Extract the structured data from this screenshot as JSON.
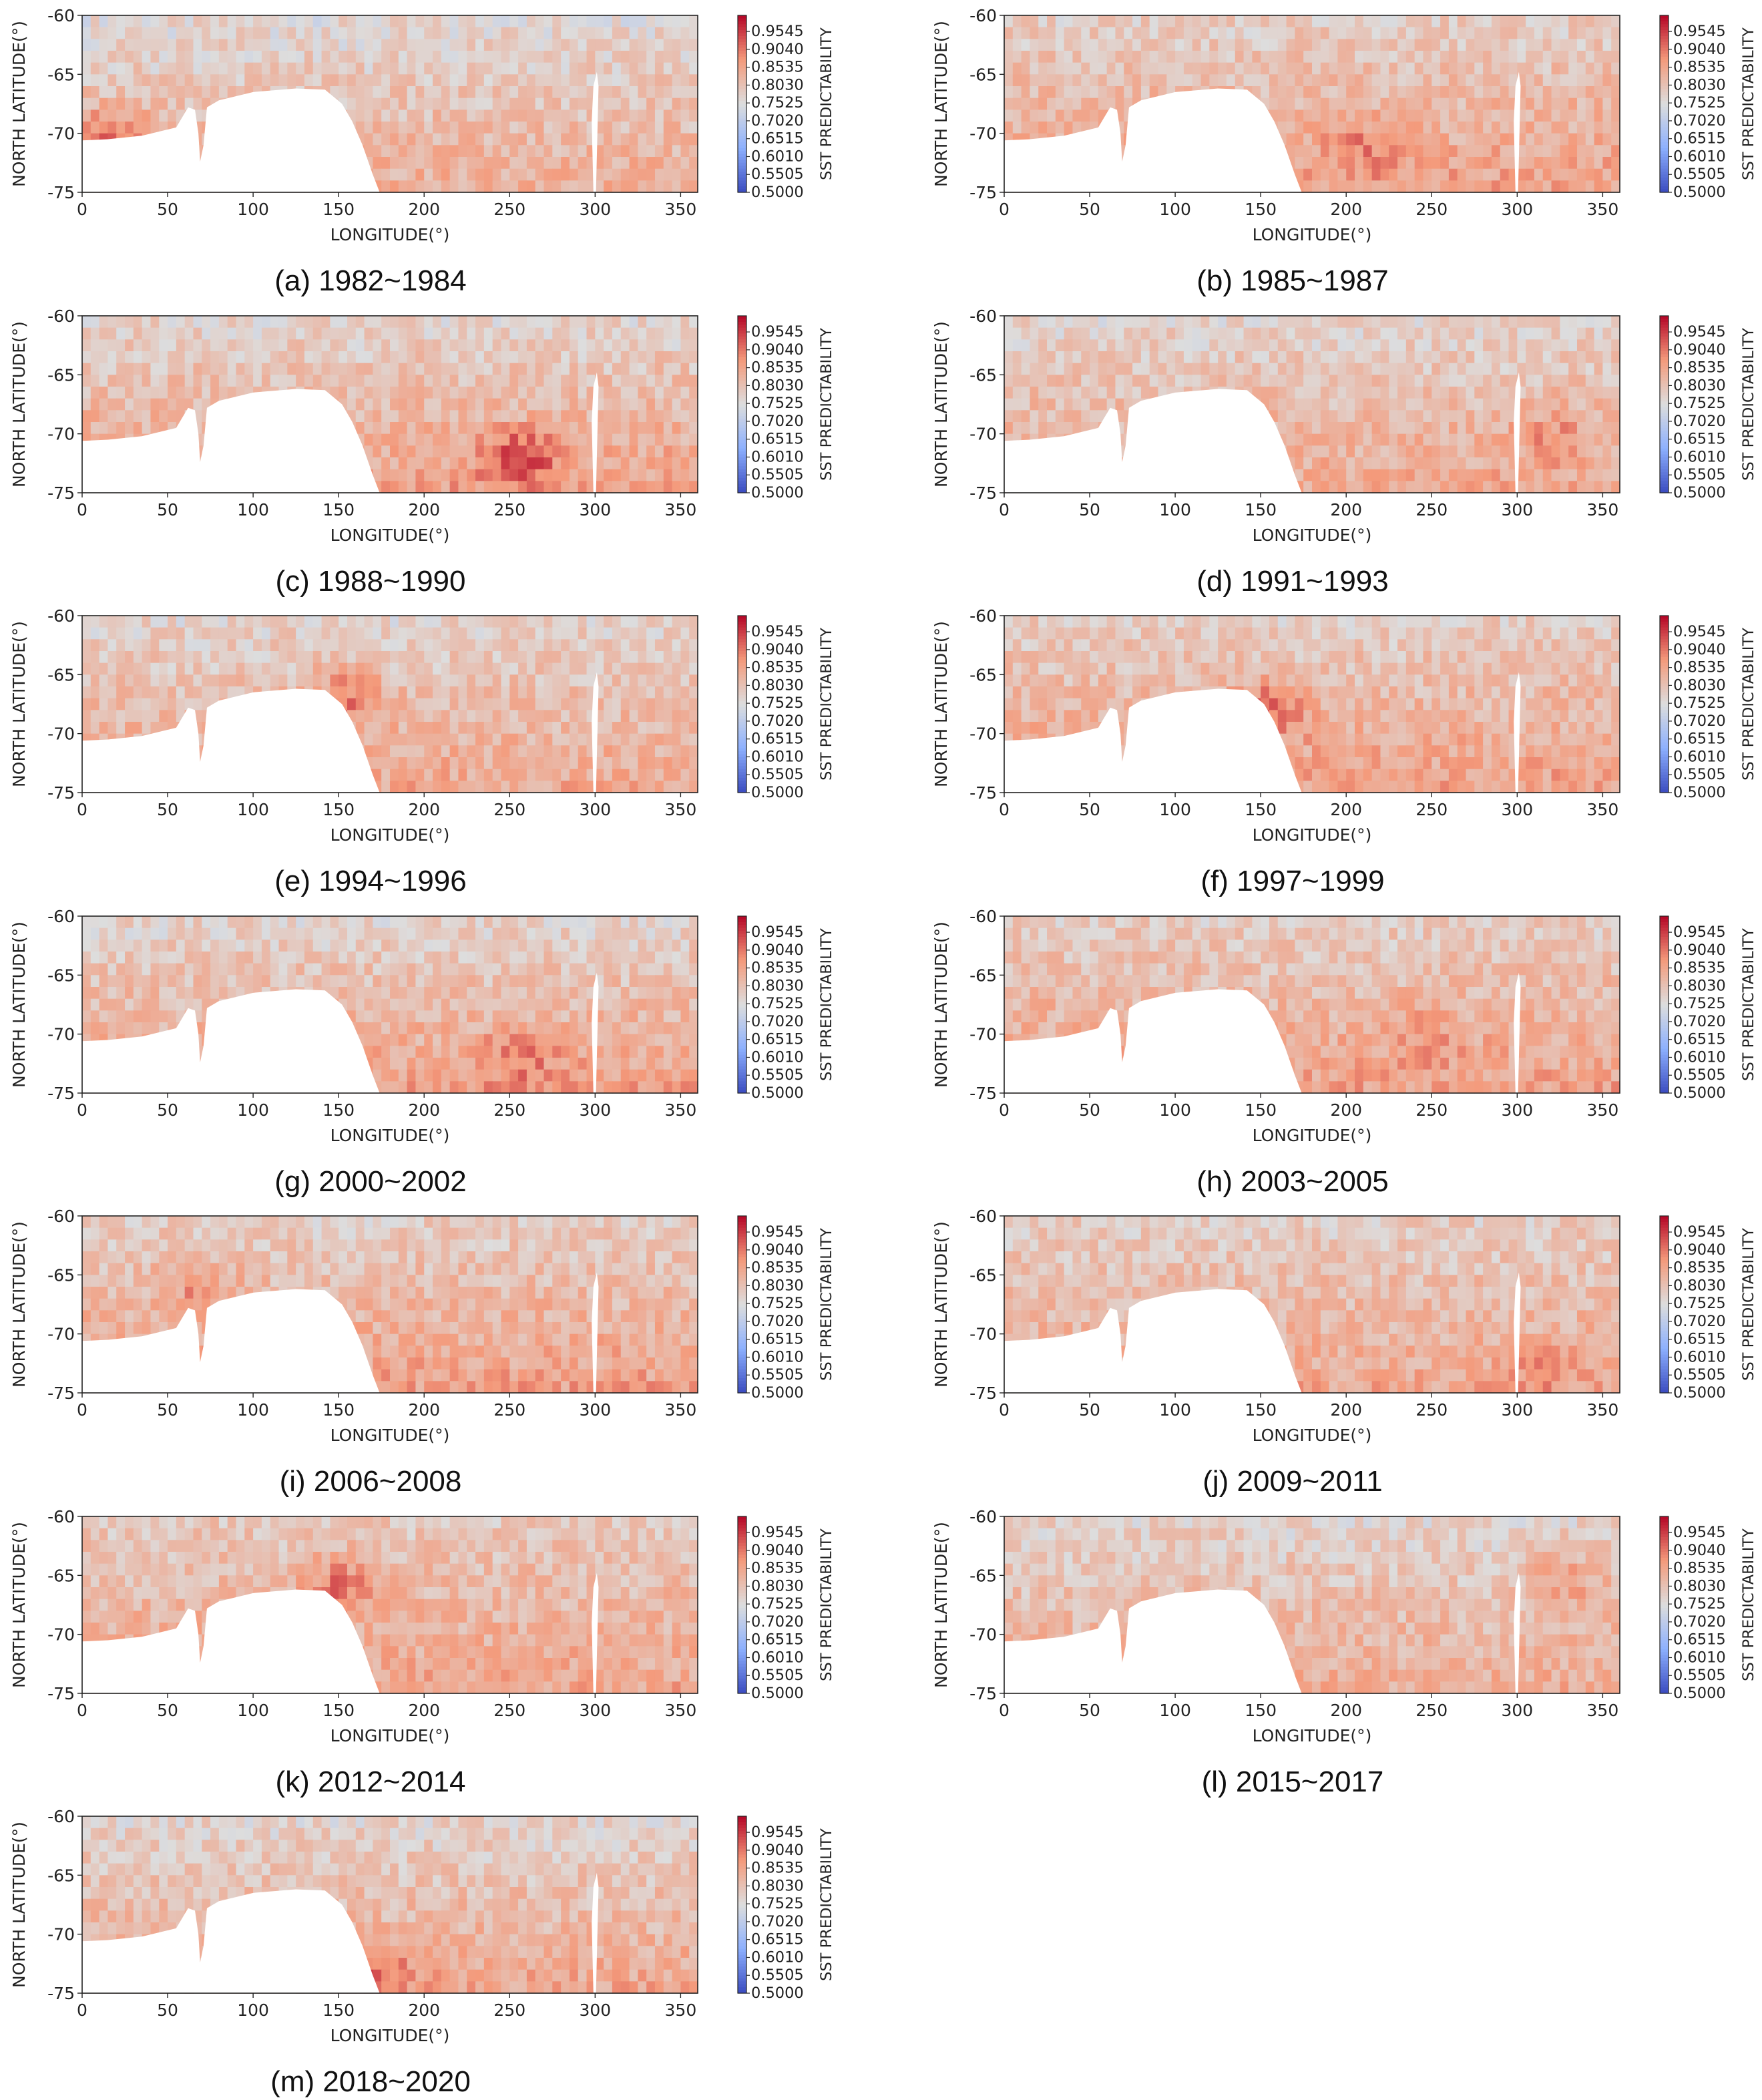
{
  "figure": {
    "colorbar": {
      "title": "SST PREDICTABILITY",
      "ticks": [
        "0.9545",
        "0.9040",
        "0.8535",
        "0.8030",
        "0.7525",
        "0.7020",
        "0.6515",
        "0.6010",
        "0.5505",
        "0.5000"
      ],
      "range": [
        0.5,
        1.0
      ],
      "colormap": "coolwarm",
      "colors": {
        "low": "#3b4cc0",
        "mid": "#dddddd",
        "high": "#b40426",
        "land": "#ffffff"
      }
    }
  },
  "chart_data": [
    {
      "type": "heatmap",
      "caption": "(a) 1982~1984",
      "xlabel": "LONGITUDE(°)",
      "ylabel": "NORTH LATITUDE(°)",
      "xlim": [
        0,
        360
      ],
      "ylim": [
        -75,
        -60
      ],
      "xticks": [
        "0",
        "50",
        "100",
        "150",
        "200",
        "250",
        "300",
        "350"
      ],
      "yticks": [
        "-60",
        "-65",
        "-70",
        "-75"
      ],
      "zlim": [
        0.5,
        1.0
      ],
      "level_south": 0.84,
      "level_north": 0.76,
      "hotspot": {
        "lon": 20,
        "lat": -70,
        "value": 0.93
      }
    },
    {
      "type": "heatmap",
      "caption": "(b) 1985~1987",
      "xlabel": "LONGITUDE(°)",
      "ylabel": "NORTH LATITUDE(°)",
      "xlim": [
        0,
        360
      ],
      "ylim": [
        -75,
        -60
      ],
      "xticks": [
        "0",
        "50",
        "100",
        "150",
        "200",
        "250",
        "300",
        "350"
      ],
      "yticks": [
        "-60",
        "-65",
        "-70",
        "-75"
      ],
      "zlim": [
        0.5,
        1.0
      ],
      "level_south": 0.86,
      "level_north": 0.78,
      "hotspot": {
        "lon": 210,
        "lat": -71,
        "value": 0.91
      }
    },
    {
      "type": "heatmap",
      "caption": "(c) 1988~1990",
      "xlabel": "LONGITUDE(°)",
      "ylabel": "NORTH LATITUDE(°)",
      "xlim": [
        0,
        360
      ],
      "ylim": [
        -75,
        -60
      ],
      "xticks": [
        "0",
        "50",
        "100",
        "150",
        "200",
        "250",
        "300",
        "350"
      ],
      "yticks": [
        "-60",
        "-65",
        "-70",
        "-75"
      ],
      "zlim": [
        0.5,
        1.0
      ],
      "level_south": 0.86,
      "level_north": 0.77,
      "hotspot": {
        "lon": 255,
        "lat": -72,
        "value": 0.97
      }
    },
    {
      "type": "heatmap",
      "caption": "(d) 1991~1993",
      "xlabel": "LONGITUDE(°)",
      "ylabel": "NORTH LATITUDE(°)",
      "xlim": [
        0,
        360
      ],
      "ylim": [
        -75,
        -60
      ],
      "xticks": [
        "0",
        "50",
        "100",
        "150",
        "200",
        "250",
        "300",
        "350"
      ],
      "yticks": [
        "-60",
        "-65",
        "-70",
        "-75"
      ],
      "zlim": [
        0.5,
        1.0
      ],
      "level_south": 0.85,
      "level_north": 0.77,
      "hotspot": {
        "lon": 320,
        "lat": -70,
        "value": 0.9
      }
    },
    {
      "type": "heatmap",
      "caption": "(e) 1994~1996",
      "xlabel": "LONGITUDE(°)",
      "ylabel": "NORTH LATITUDE(°)",
      "xlim": [
        0,
        360
      ],
      "ylim": [
        -75,
        -60
      ],
      "xticks": [
        "0",
        "50",
        "100",
        "150",
        "200",
        "250",
        "300",
        "350"
      ],
      "yticks": [
        "-60",
        "-65",
        "-70",
        "-75"
      ],
      "zlim": [
        0.5,
        1.0
      ],
      "level_south": 0.85,
      "level_north": 0.77,
      "hotspot": {
        "lon": 155,
        "lat": -67,
        "value": 0.94
      }
    },
    {
      "type": "heatmap",
      "caption": "(f) 1997~1999",
      "xlabel": "LONGITUDE(°)",
      "ylabel": "NORTH LATITUDE(°)",
      "xlim": [
        0,
        360
      ],
      "ylim": [
        -75,
        -60
      ],
      "xticks": [
        "0",
        "50",
        "100",
        "150",
        "200",
        "250",
        "300",
        "350"
      ],
      "yticks": [
        "-60",
        "-65",
        "-70",
        "-75"
      ],
      "zlim": [
        0.5,
        1.0
      ],
      "level_south": 0.86,
      "level_north": 0.78,
      "hotspot": {
        "lon": 155,
        "lat": -68,
        "value": 0.95
      }
    },
    {
      "type": "heatmap",
      "caption": "(g) 2000~2002",
      "xlabel": "LONGITUDE(°)",
      "ylabel": "NORTH LATITUDE(°)",
      "xlim": [
        0,
        360
      ],
      "ylim": [
        -75,
        -60
      ],
      "xticks": [
        "0",
        "50",
        "100",
        "150",
        "200",
        "250",
        "300",
        "350"
      ],
      "yticks": [
        "-60",
        "-65",
        "-70",
        "-75"
      ],
      "zlim": [
        0.5,
        1.0
      ],
      "level_south": 0.86,
      "level_north": 0.77,
      "hotspot": {
        "lon": 255,
        "lat": -72,
        "value": 0.92
      }
    },
    {
      "type": "heatmap",
      "caption": "(h) 2003~2005",
      "xlabel": "LONGITUDE(°)",
      "ylabel": "NORTH LATITUDE(°)",
      "xlim": [
        0,
        360
      ],
      "ylim": [
        -75,
        -60
      ],
      "xticks": [
        "0",
        "50",
        "100",
        "150",
        "200",
        "250",
        "300",
        "350"
      ],
      "yticks": [
        "-60",
        "-65",
        "-70",
        "-75"
      ],
      "zlim": [
        0.5,
        1.0
      ],
      "level_south": 0.86,
      "level_north": 0.78,
      "hotspot": {
        "lon": 250,
        "lat": -70,
        "value": 0.9
      }
    },
    {
      "type": "heatmap",
      "caption": "(i) 2006~2008",
      "xlabel": "LONGITUDE(°)",
      "ylabel": "NORTH LATITUDE(°)",
      "xlim": [
        0,
        360
      ],
      "ylim": [
        -75,
        -60
      ],
      "xticks": [
        "0",
        "50",
        "100",
        "150",
        "200",
        "250",
        "300",
        "350"
      ],
      "yticks": [
        "-60",
        "-65",
        "-70",
        "-75"
      ],
      "zlim": [
        0.5,
        1.0
      ],
      "level_south": 0.86,
      "level_north": 0.78,
      "hotspot": {
        "lon": 70,
        "lat": -66,
        "value": 0.92
      }
    },
    {
      "type": "heatmap",
      "caption": "(j) 2009~2011",
      "xlabel": "LONGITUDE(°)",
      "ylabel": "NORTH LATITUDE(°)",
      "xlim": [
        0,
        360
      ],
      "ylim": [
        -75,
        -60
      ],
      "xticks": [
        "0",
        "50",
        "100",
        "150",
        "200",
        "250",
        "300",
        "350"
      ],
      "yticks": [
        "-60",
        "-65",
        "-70",
        "-75"
      ],
      "zlim": [
        0.5,
        1.0
      ],
      "level_south": 0.85,
      "level_north": 0.78,
      "hotspot": {
        "lon": 315,
        "lat": -73,
        "value": 0.88
      }
    },
    {
      "type": "heatmap",
      "caption": "(k) 2012~2014",
      "xlabel": "LONGITUDE(°)",
      "ylabel": "NORTH LATITUDE(°)",
      "xlim": [
        0,
        360
      ],
      "ylim": [
        -75,
        -60
      ],
      "xticks": [
        "0",
        "50",
        "100",
        "150",
        "200",
        "250",
        "300",
        "350"
      ],
      "yticks": [
        "-60",
        "-65",
        "-70",
        "-75"
      ],
      "zlim": [
        0.5,
        1.0
      ],
      "level_south": 0.85,
      "level_north": 0.79,
      "hotspot": {
        "lon": 150,
        "lat": -66,
        "value": 0.94
      }
    },
    {
      "type": "heatmap",
      "caption": "(l) 2015~2017",
      "xlabel": "LONGITUDE(°)",
      "ylabel": "NORTH LATITUDE(°)",
      "xlim": [
        0,
        360
      ],
      "ylim": [
        -75,
        -60
      ],
      "xticks": [
        "0",
        "50",
        "100",
        "150",
        "200",
        "250",
        "300",
        "350"
      ],
      "yticks": [
        "-60",
        "-65",
        "-70",
        "-75"
      ],
      "zlim": [
        0.5,
        1.0
      ],
      "level_south": 0.84,
      "level_north": 0.77,
      "hotspot": {
        "lon": 330,
        "lat": -65,
        "value": 0.9
      }
    },
    {
      "type": "heatmap",
      "caption": "(m) 2018~2020",
      "xlabel": "LONGITUDE(°)",
      "ylabel": "NORTH LATITUDE(°)",
      "xlim": [
        0,
        360
      ],
      "ylim": [
        -75,
        -60
      ],
      "xticks": [
        "0",
        "50",
        "100",
        "150",
        "200",
        "250",
        "300",
        "350"
      ],
      "yticks": [
        "-60",
        "-65",
        "-70",
        "-75"
      ],
      "zlim": [
        0.5,
        1.0
      ],
      "level_south": 0.85,
      "level_north": 0.77,
      "hotspot": {
        "lon": 170,
        "lat": -74,
        "value": 0.94
      }
    }
  ]
}
